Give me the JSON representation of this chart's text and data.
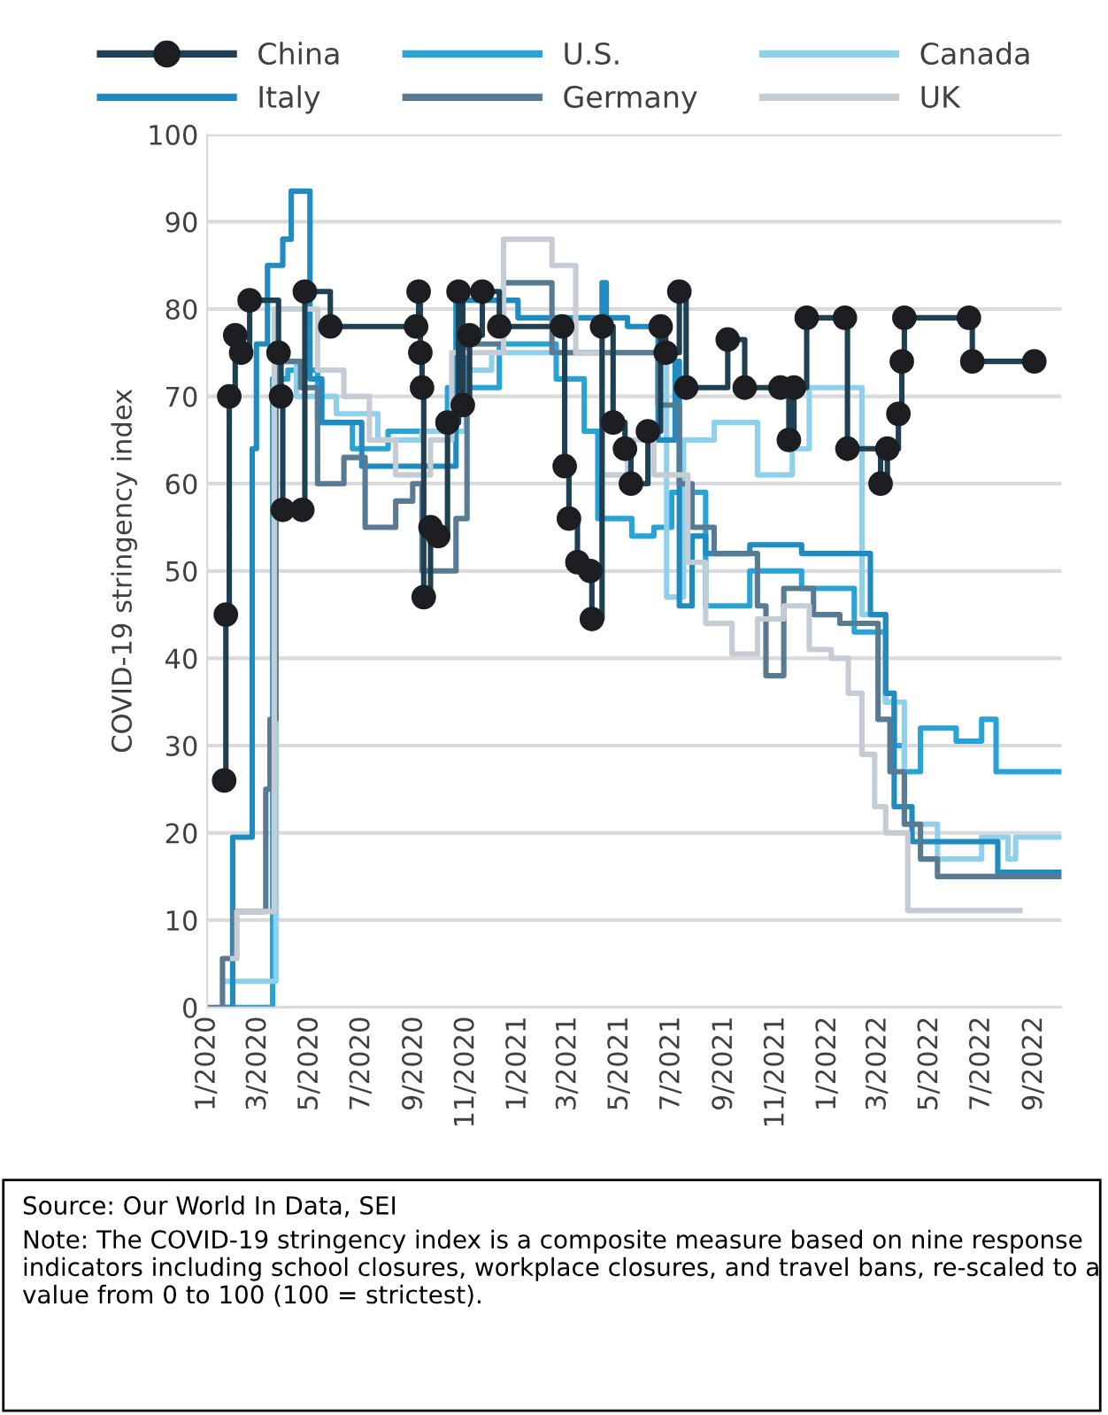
{
  "chart_data": {
    "type": "step",
    "ylabel": "COVID-19 stringency index",
    "xlim": [
      "2020-01-01",
      "2022-10-03"
    ],
    "ylim": [
      0,
      100
    ],
    "yticks": [
      0,
      10,
      20,
      30,
      40,
      50,
      60,
      70,
      80,
      90,
      100
    ],
    "xticks": [
      {
        "value": "2020-01-01",
        "label": "1/2020"
      },
      {
        "value": "2020-03-01",
        "label": "3/2020"
      },
      {
        "value": "2020-05-01",
        "label": "5/2020"
      },
      {
        "value": "2020-07-01",
        "label": "7/2020"
      },
      {
        "value": "2020-09-01",
        "label": "9/2020"
      },
      {
        "value": "2020-11-01",
        "label": "11/2020"
      },
      {
        "value": "2021-01-01",
        "label": "1/2021"
      },
      {
        "value": "2021-03-01",
        "label": "3/2021"
      },
      {
        "value": "2021-05-01",
        "label": "5/2021"
      },
      {
        "value": "2021-07-01",
        "label": "7/2021"
      },
      {
        "value": "2021-09-01",
        "label": "9/2021"
      },
      {
        "value": "2021-11-01",
        "label": "11/2021"
      },
      {
        "value": "2022-01-01",
        "label": "1/2022"
      },
      {
        "value": "2022-03-01",
        "label": "3/2022"
      },
      {
        "value": "2022-05-01",
        "label": "5/2022"
      },
      {
        "value": "2022-07-01",
        "label": "7/2022"
      },
      {
        "value": "2022-09-01",
        "label": "9/2022"
      }
    ],
    "grid": "y",
    "legend": "top",
    "series": [
      {
        "name": "China",
        "color": "#1f3f52",
        "marker": "circle",
        "x": [
          "2020-01-21",
          "2020-01-23",
          "2020-01-27",
          "2020-02-03",
          "2020-02-10",
          "2020-02-20",
          "2020-03-25",
          "2020-03-28",
          "2020-03-30",
          "2020-04-22",
          "2020-04-25",
          "2020-05-25",
          "2020-09-03",
          "2020-09-06",
          "2020-09-08",
          "2020-09-10",
          "2020-09-12",
          "2020-09-20",
          "2020-09-29",
          "2020-10-10",
          "2020-10-23",
          "2020-10-28",
          "2020-11-05",
          "2020-11-20",
          "2020-12-10",
          "2021-02-22",
          "2021-02-25",
          "2021-03-02",
          "2021-03-12",
          "2021-03-27",
          "2021-03-29",
          "2021-04-10",
          "2021-04-23",
          "2021-05-07",
          "2021-05-14",
          "2021-06-03",
          "2021-06-18",
          "2021-06-24",
          "2021-07-10",
          "2021-07-18",
          "2021-09-05",
          "2021-09-25",
          "2021-11-06",
          "2021-11-16",
          "2021-11-22",
          "2021-12-07",
          "2022-01-21",
          "2022-01-24",
          "2022-03-04",
          "2022-03-12",
          "2022-03-25",
          "2022-03-29",
          "2022-04-01",
          "2022-06-16",
          "2022-06-20",
          "2022-09-01"
        ],
        "values": [
          26,
          45,
          70,
          77,
          75,
          81,
          75,
          70,
          57,
          57,
          82,
          78,
          78,
          82,
          75,
          71,
          47,
          55,
          54,
          67,
          82,
          69,
          77,
          82,
          78,
          78,
          62,
          56,
          51,
          50,
          44.5,
          78,
          67,
          64,
          60,
          66,
          78,
          75,
          82,
          71,
          76.5,
          71,
          71,
          65,
          71,
          79,
          79,
          64,
          60,
          64,
          68,
          74,
          79,
          79,
          74,
          74
        ]
      },
      {
        "name": "U.S.",
        "color": "#29a3d6",
        "x": [
          "2020-01-20",
          "2020-03-10",
          "2020-03-18",
          "2020-04-05",
          "2020-05-10",
          "2020-06-20",
          "2020-08-01",
          "2020-10-10",
          "2020-12-10",
          "2021-02-15",
          "2021-03-20",
          "2021-04-05",
          "2021-05-15",
          "2021-06-10",
          "2021-07-01",
          "2021-08-10",
          "2021-10-01",
          "2021-12-01",
          "2022-02-01",
          "2022-03-10",
          "2022-03-20",
          "2022-04-01",
          "2022-04-20",
          "2022-06-01",
          "2022-07-01",
          "2022-07-18",
          "2022-08-01",
          "2022-10-01"
        ],
        "values": [
          0,
          0,
          72,
          73,
          67,
          64,
          66,
          71,
          76,
          72,
          66,
          56,
          54,
          55,
          59,
          46,
          50,
          48,
          43,
          35,
          30,
          27,
          32,
          30.5,
          33,
          27,
          27,
          27
        ]
      },
      {
        "name": "Canada",
        "color": "#8fd0ec",
        "x": [
          "2020-01-20",
          "2020-03-12",
          "2020-03-22",
          "2020-04-15",
          "2020-06-01",
          "2020-07-20",
          "2020-09-10",
          "2020-11-01",
          "2020-12-01",
          "2021-05-01",
          "2021-06-25",
          "2021-07-15",
          "2021-08-20",
          "2021-10-10",
          "2021-11-20",
          "2021-12-10",
          "2022-01-25",
          "2022-02-10",
          "2022-03-10",
          "2022-04-01",
          "2022-05-10",
          "2022-07-01",
          "2022-08-01",
          "2022-08-10",
          "2022-10-01"
        ],
        "values": [
          3,
          3,
          74,
          70,
          68,
          65,
          66,
          73,
          75,
          75,
          47,
          65,
          67,
          61,
          64,
          71,
          71,
          45,
          35,
          21,
          17,
          19.5,
          17,
          19.5,
          19.5
        ]
      },
      {
        "name": "Italy",
        "color": "#1f8bc0",
        "x": [
          "2020-01-25",
          "2020-01-31",
          "2020-02-23",
          "2020-02-28",
          "2020-03-12",
          "2020-03-30",
          "2020-04-09",
          "2020-05-01",
          "2020-05-15",
          "2020-07-01",
          "2020-09-01",
          "2020-10-20",
          "2020-11-05",
          "2021-01-01",
          "2021-04-10",
          "2021-04-15",
          "2021-05-10",
          "2021-06-15",
          "2021-07-05",
          "2021-07-10",
          "2021-07-25",
          "2021-08-10",
          "2021-10-01",
          "2021-12-01",
          "2022-02-20",
          "2022-03-10",
          "2022-03-20",
          "2022-04-10",
          "2022-07-20",
          "2022-10-01"
        ],
        "values": [
          0,
          19.5,
          64,
          76,
          85,
          88,
          93.5,
          72,
          67,
          62,
          62,
          81,
          81,
          79,
          83,
          79,
          78,
          65,
          74,
          46,
          54,
          52,
          53,
          52,
          45,
          36,
          23,
          19,
          15.5,
          15.5
        ]
      },
      {
        "name": "Germany",
        "color": "#587a93",
        "x": [
          "2020-01-01",
          "2020-01-19",
          "2020-02-01",
          "2020-03-10",
          "2020-03-15",
          "2020-03-22",
          "2020-04-20",
          "2020-05-10",
          "2020-06-10",
          "2020-07-05",
          "2020-08-10",
          "2020-08-30",
          "2020-09-10",
          "2020-10-20",
          "2020-11-02",
          "2020-12-15",
          "2021-02-10",
          "2021-04-30",
          "2021-06-15",
          "2021-07-10",
          "2021-07-25",
          "2021-08-20",
          "2021-10-10",
          "2021-10-20",
          "2021-11-10",
          "2021-12-15",
          "2022-01-15",
          "2022-03-01",
          "2022-03-15",
          "2022-04-01",
          "2022-04-20",
          "2022-05-10",
          "2022-10-01"
        ],
        "values": [
          0,
          5.6,
          11,
          25,
          33,
          74,
          71,
          60,
          63,
          55,
          58,
          60,
          50,
          56,
          76,
          83,
          75,
          75,
          69,
          60,
          55,
          52,
          46,
          38,
          48,
          45,
          44,
          33,
          27,
          21,
          17,
          15,
          15
        ]
      },
      {
        "name": "UK",
        "color": "#c5ccd3",
        "x": [
          "2020-01-31",
          "2020-02-05",
          "2020-03-15",
          "2020-03-20",
          "2020-05-10",
          "2020-06-10",
          "2020-07-10",
          "2020-08-10",
          "2020-09-20",
          "2020-10-15",
          "2020-11-05",
          "2020-12-15",
          "2021-02-10",
          "2021-03-10",
          "2021-04-10",
          "2021-05-10",
          "2021-06-10",
          "2021-07-20",
          "2021-08-10",
          "2021-09-10",
          "2021-10-10",
          "2021-11-10",
          "2021-12-10",
          "2022-01-05",
          "2022-01-25",
          "2022-02-10",
          "2022-02-25",
          "2022-03-10",
          "2022-04-05",
          "2022-08-15"
        ],
        "values": [
          5.6,
          11,
          11,
          80,
          73,
          70,
          65,
          61,
          65,
          75,
          75,
          88,
          85,
          75,
          61,
          65,
          61,
          51,
          44,
          40.5,
          44.5,
          46,
          41,
          40,
          36,
          29,
          23,
          20,
          11.1,
          11.1
        ]
      }
    ],
    "annotations": [
      "Source: Our World In Data, SEI",
      "Note: The COVID-19 stringency index is a composite measure based on nine response indicators including school closures, workplace closures, and travel bans, re-scaled to a value from 0 to 100 (100 = strictest)."
    ]
  }
}
